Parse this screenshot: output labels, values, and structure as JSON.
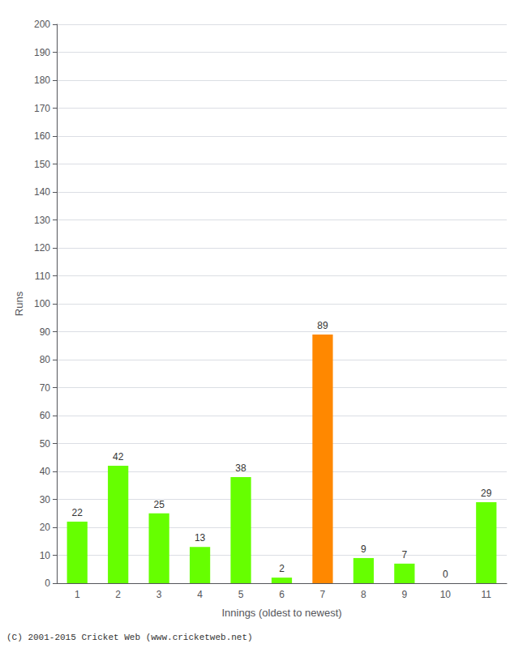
{
  "chart_data": {
    "type": "bar",
    "xlabel": "Innings (oldest to newest)",
    "ylabel": "Runs",
    "categories": [
      1,
      2,
      3,
      4,
      5,
      6,
      7,
      8,
      9,
      10,
      11
    ],
    "values": [
      22,
      42,
      25,
      13,
      38,
      2,
      89,
      9,
      7,
      0,
      29
    ],
    "colors": [
      "#66ff00",
      "#66ff00",
      "#66ff00",
      "#66ff00",
      "#66ff00",
      "#66ff00",
      "#ff8800",
      "#66ff00",
      "#66ff00",
      "#66ff00",
      "#66ff00"
    ],
    "ylim": [
      0,
      200
    ],
    "yticks": [
      0,
      10,
      20,
      30,
      40,
      50,
      60,
      70,
      80,
      90,
      100,
      110,
      120,
      130,
      140,
      150,
      160,
      170,
      180,
      190,
      200
    ],
    "grid": true,
    "data_labels": true,
    "annotations": [
      "(C) 2001-2015 Cricket Web (www.cricketweb.net)"
    ]
  }
}
